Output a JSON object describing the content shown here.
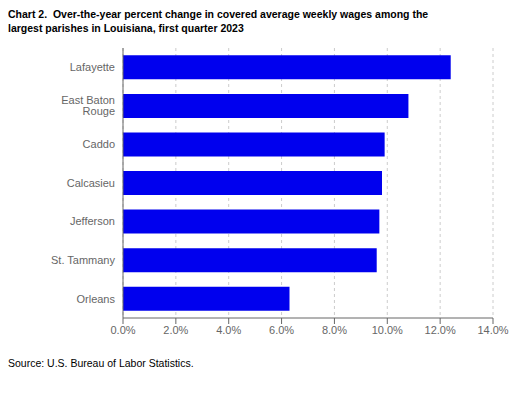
{
  "chart_data": {
    "type": "bar",
    "orientation": "horizontal",
    "title": "Chart 2.  Over-the-year percent change in covered average weekly wages among the\nlargest parishes in Louisiana, first quarter 2023",
    "source": "Source: U.S. Bureau of Labor Statistics.",
    "categories": [
      "Lafayette",
      "East Baton Rouge",
      "Caddo",
      "Calcasieu",
      "Jefferson",
      "St. Tammany",
      "Orleans"
    ],
    "values": [
      0.124,
      0.108,
      0.099,
      0.098,
      0.097,
      0.096,
      0.063
    ],
    "color": "#0000ee",
    "xlim": [
      0,
      0.14
    ],
    "xticks": [
      {
        "value": 0.0,
        "label": "0.0%"
      },
      {
        "value": 0.02,
        "label": "2.0%"
      },
      {
        "value": 0.04,
        "label": "4.0%"
      },
      {
        "value": 0.06,
        "label": "6.0%"
      },
      {
        "value": 0.08,
        "label": "8.0%"
      },
      {
        "value": 0.1,
        "label": "10.0%"
      },
      {
        "value": 0.12,
        "label": "12.0%"
      },
      {
        "value": 0.14,
        "label": "14.0%"
      }
    ],
    "grid": true
  }
}
